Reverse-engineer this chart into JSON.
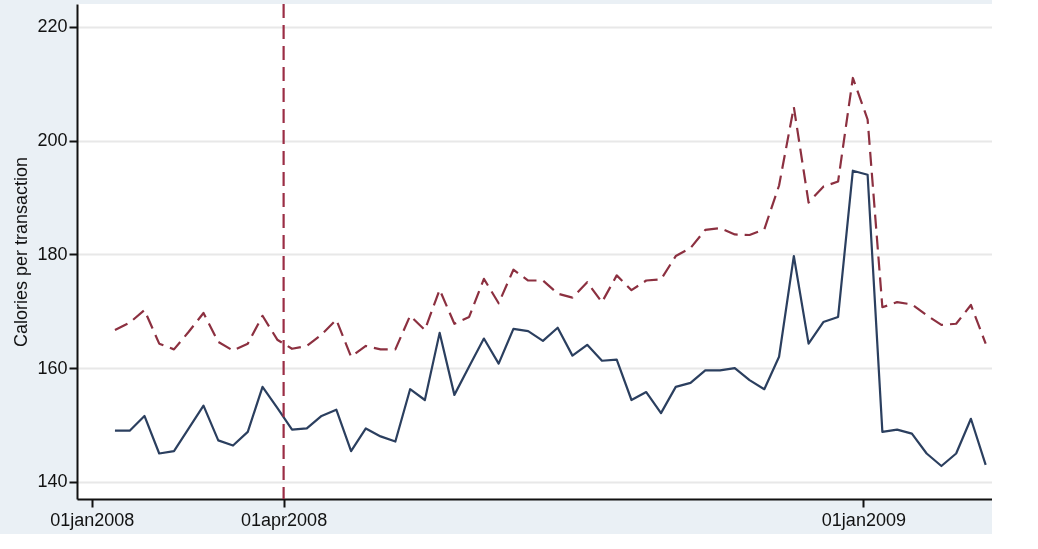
{
  "chart_data": {
    "type": "line",
    "ylabel": "Calories per transaction",
    "x": [
      "2008-01-12",
      "2008-01-19",
      "2008-01-26",
      "2008-02-02",
      "2008-02-09",
      "2008-02-16",
      "2008-02-23",
      "2008-03-01",
      "2008-03-08",
      "2008-03-15",
      "2008-03-22",
      "2008-03-29",
      "2008-04-05",
      "2008-04-12",
      "2008-04-19",
      "2008-04-26",
      "2008-05-03",
      "2008-05-10",
      "2008-05-17",
      "2008-05-24",
      "2008-05-31",
      "2008-06-07",
      "2008-06-14",
      "2008-06-21",
      "2008-06-28",
      "2008-07-05",
      "2008-07-12",
      "2008-07-19",
      "2008-07-26",
      "2008-08-02",
      "2008-08-09",
      "2008-08-16",
      "2008-08-23",
      "2008-08-30",
      "2008-09-06",
      "2008-09-13",
      "2008-09-20",
      "2008-09-27",
      "2008-10-04",
      "2008-10-11",
      "2008-10-18",
      "2008-10-25",
      "2008-11-01",
      "2008-11-08",
      "2008-11-15",
      "2008-11-22",
      "2008-11-29",
      "2008-12-06",
      "2008-12-13",
      "2008-12-20",
      "2008-12-27",
      "2009-01-03",
      "2009-01-10",
      "2009-01-17",
      "2009-01-24",
      "2009-01-31",
      "2009-02-07",
      "2009-02-14",
      "2009-02-21",
      "2009-02-28"
    ],
    "series": [
      {
        "color": "#2b3f5f",
        "line_style": "solid",
        "values": [
          149.0,
          149.0,
          151.6,
          145.0,
          145.4,
          149.4,
          153.4,
          147.3,
          146.4,
          148.8,
          156.7,
          153.0,
          149.2,
          149.4,
          151.6,
          152.7,
          145.4,
          149.4,
          148.0,
          147.1,
          156.3,
          154.4,
          166.2,
          155.3,
          160.3,
          165.2,
          160.8,
          166.9,
          166.5,
          164.8,
          167.1,
          162.2,
          164.1,
          161.3,
          161.5,
          154.4,
          155.8,
          152.1,
          156.7,
          157.4,
          159.6,
          159.6,
          160.0,
          157.9,
          156.3,
          162.0,
          179.7,
          164.3,
          168.1,
          169.0,
          194.7,
          194.0,
          148.8,
          149.2,
          148.5,
          145.0,
          142.8,
          145.0,
          151.1,
          143.0
        ]
      },
      {
        "color": "#8c3040",
        "line_style": "dashed",
        "values": [
          166.7,
          168.0,
          170.2,
          164.3,
          163.3,
          166.4,
          169.7,
          164.6,
          163.1,
          164.3,
          169.2,
          165.0,
          163.4,
          163.9,
          165.9,
          168.5,
          162.0,
          163.9,
          163.3,
          163.3,
          169.2,
          166.7,
          173.8,
          167.8,
          169.0,
          175.7,
          171.4,
          177.3,
          175.4,
          175.4,
          173.1,
          172.4,
          175.1,
          171.6,
          176.3,
          173.7,
          175.4,
          175.6,
          179.7,
          181.1,
          184.3,
          184.6,
          183.5,
          183.4,
          184.4,
          192.1,
          205.9,
          189.1,
          191.9,
          192.8,
          211.0,
          203.7,
          170.7,
          171.6,
          171.2,
          169.3,
          167.6,
          167.8,
          171.1,
          164.3
        ]
      }
    ],
    "xlim": [
      "2007-12-25",
      "2009-03-03"
    ],
    "xticks": [
      {
        "value": "2008-01-01",
        "label": "01jan2008"
      },
      {
        "value": "2008-04-01",
        "label": "01apr2008"
      },
      {
        "value": "2009-01-01",
        "label": "01jan2009"
      }
    ],
    "ylim": [
      137,
      224
    ],
    "yticks": [
      140,
      160,
      180,
      200,
      220
    ],
    "grid": "y",
    "ref_lines": [
      {
        "axis": "x",
        "value": "2008-04-01",
        "color": "#9b2d45",
        "line_style": "dashed"
      }
    ]
  }
}
